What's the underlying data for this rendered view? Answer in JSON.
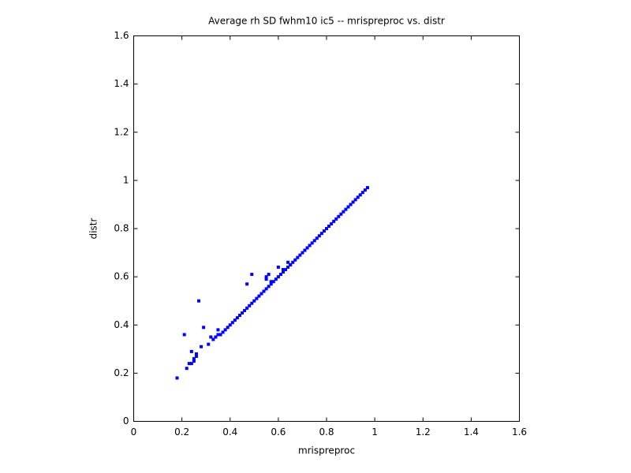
{
  "chart_data": {
    "type": "scatter",
    "title": "Average rh SD fwhm10 ic5 -- mrispreproc vs. distr",
    "x_label": "mrispreproc",
    "y_label": "distr",
    "x": [
      0.18,
      0.21,
      0.22,
      0.23,
      0.24,
      0.24,
      0.25,
      0.25,
      0.26,
      0.26,
      0.27,
      0.28,
      0.29,
      0.31,
      0.32,
      0.33,
      0.34,
      0.35,
      0.35,
      0.47,
      0.49,
      0.55,
      0.55,
      0.56,
      0.57,
      0.6,
      0.62,
      0.64,
      0.65,
      0.36,
      0.37,
      0.38,
      0.39,
      0.4,
      0.41,
      0.42,
      0.43,
      0.44,
      0.45,
      0.46,
      0.47,
      0.48,
      0.49,
      0.5,
      0.51,
      0.52,
      0.53,
      0.54,
      0.55,
      0.56,
      0.57,
      0.58,
      0.59,
      0.6,
      0.61,
      0.62,
      0.63,
      0.64,
      0.65,
      0.66,
      0.67,
      0.68,
      0.69,
      0.7,
      0.71,
      0.72,
      0.73,
      0.74,
      0.75,
      0.76,
      0.77,
      0.78,
      0.79,
      0.8,
      0.81,
      0.82,
      0.83,
      0.84,
      0.85,
      0.86,
      0.87,
      0.88,
      0.89,
      0.9,
      0.91,
      0.92,
      0.93,
      0.94,
      0.95,
      0.96,
      0.97
    ],
    "values": [
      0.18,
      0.36,
      0.22,
      0.24,
      0.24,
      0.29,
      0.25,
      0.26,
      0.27,
      0.28,
      0.5,
      0.31,
      0.39,
      0.32,
      0.35,
      0.34,
      0.35,
      0.36,
      0.38,
      0.57,
      0.61,
      0.59,
      0.6,
      0.61,
      0.58,
      0.64,
      0.63,
      0.66,
      0.65,
      0.36,
      0.37,
      0.38,
      0.39,
      0.4,
      0.41,
      0.42,
      0.43,
      0.44,
      0.45,
      0.46,
      0.47,
      0.48,
      0.49,
      0.5,
      0.51,
      0.52,
      0.53,
      0.54,
      0.55,
      0.56,
      0.57,
      0.58,
      0.59,
      0.6,
      0.61,
      0.62,
      0.63,
      0.64,
      0.65,
      0.66,
      0.67,
      0.68,
      0.69,
      0.7,
      0.71,
      0.72,
      0.73,
      0.74,
      0.75,
      0.76,
      0.77,
      0.78,
      0.79,
      0.8,
      0.81,
      0.82,
      0.83,
      0.84,
      0.85,
      0.86,
      0.87,
      0.88,
      0.89,
      0.9,
      0.91,
      0.92,
      0.93,
      0.94,
      0.95,
      0.96,
      0.97
    ],
    "color": "#0000ff",
    "xlim": [
      0,
      1.6
    ],
    "ylim": [
      0,
      1.6
    ],
    "xticks": [
      0,
      0.2,
      0.4,
      0.6,
      0.8,
      1,
      1.2,
      1.4,
      1.6
    ],
    "yticks": [
      0,
      0.2,
      0.4,
      0.6,
      0.8,
      1,
      1.2,
      1.4,
      1.6
    ],
    "grid": false
  }
}
